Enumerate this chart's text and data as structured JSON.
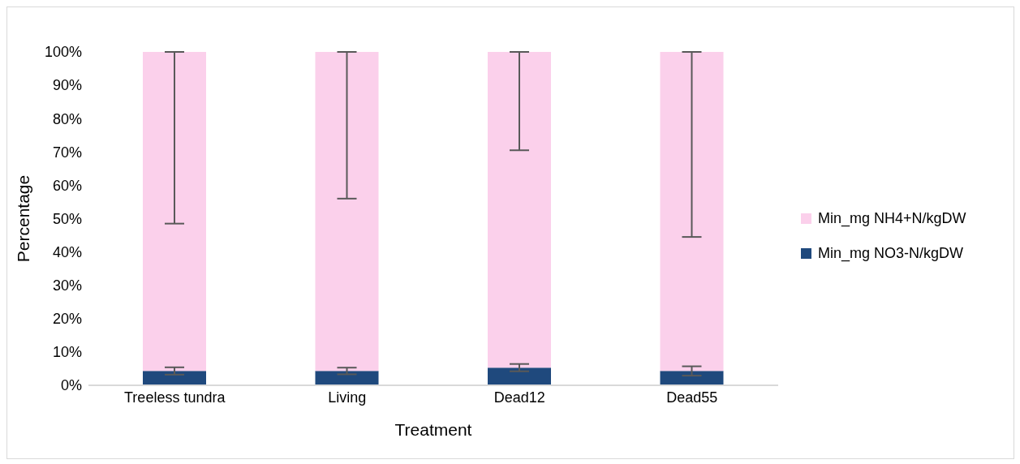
{
  "chart_data": {
    "type": "bar",
    "stacked": true,
    "xlabel": "Treatment",
    "ylabel": "Percentage",
    "categories": [
      "Treeless tundra",
      "Living",
      "Dead12",
      "Dead55"
    ],
    "series": [
      {
        "name": "Min_mg NO3-N/kgDW",
        "color": "#1f497d",
        "values": [
          4.3,
          4.3,
          5.3,
          4.3
        ],
        "errors": [
          1.1,
          1.0,
          1.1,
          1.4
        ]
      },
      {
        "name": "Min_mg NH4+N/kgDW",
        "color": "#fbd0eb",
        "values": [
          95.7,
          95.7,
          94.7,
          95.7
        ],
        "errors": [
          [
            48.5,
            100
          ],
          [
            56,
            100
          ],
          [
            70.5,
            100
          ],
          [
            44.5,
            100
          ]
        ]
      }
    ],
    "ylim": [
      0,
      100
    ],
    "yticks": [
      {
        "value": 0,
        "label": "0%"
      },
      {
        "value": 10,
        "label": "10%"
      },
      {
        "value": 20,
        "label": "20%"
      },
      {
        "value": 30,
        "label": "30%"
      },
      {
        "value": 40,
        "label": "40%"
      },
      {
        "value": 50,
        "label": "50%"
      },
      {
        "value": 60,
        "label": "60%"
      },
      {
        "value": 70,
        "label": "70%"
      },
      {
        "value": 80,
        "label": "80%"
      },
      {
        "value": 90,
        "label": "90%"
      },
      {
        "value": 100,
        "label": "100%"
      }
    ],
    "grid": false,
    "legend": "right"
  }
}
